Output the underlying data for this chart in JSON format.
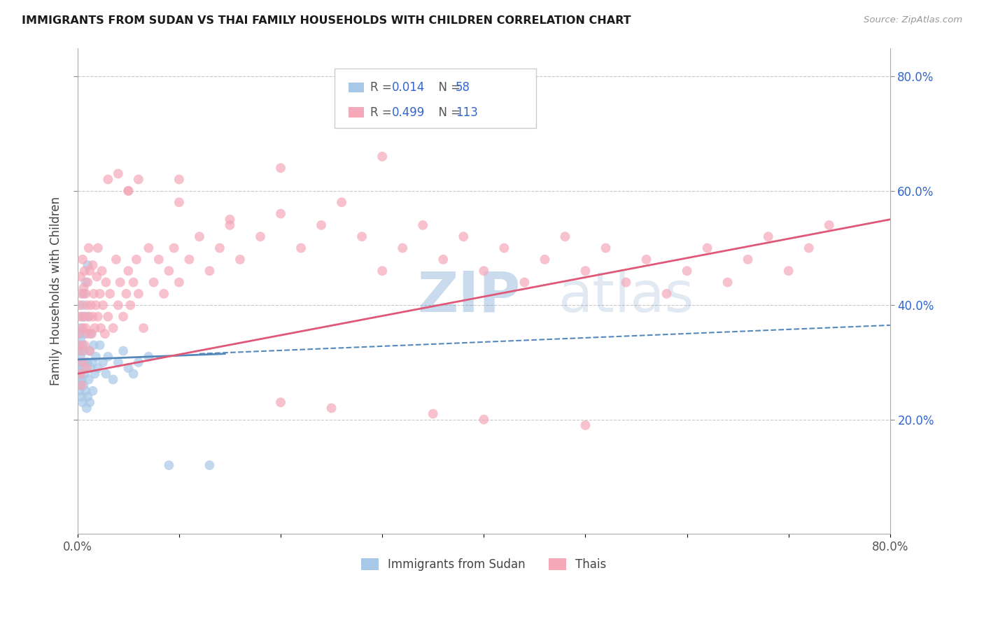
{
  "title": "IMMIGRANTS FROM SUDAN VS THAI FAMILY HOUSEHOLDS WITH CHILDREN CORRELATION CHART",
  "source": "Source: ZipAtlas.com",
  "ylabel": "Family Households with Children",
  "xlim": [
    0.0,
    0.8
  ],
  "ylim": [
    0.0,
    0.85
  ],
  "xtick_pos": [
    0.0,
    0.1,
    0.2,
    0.3,
    0.4,
    0.5,
    0.6,
    0.7,
    0.8
  ],
  "xticklabels": [
    "0.0%",
    "",
    "",
    "",
    "",
    "",
    "",
    "",
    "80.0%"
  ],
  "ytick_pos": [
    0.2,
    0.4,
    0.6,
    0.8
  ],
  "ytick_labels_right": [
    "20.0%",
    "40.0%",
    "60.0%",
    "80.0%"
  ],
  "color_blue": "#a8c8e8",
  "color_pink": "#f4a8b8",
  "color_blue_line": "#5588bb",
  "color_pink_line": "#e05878",
  "color_blue_text": "#3366cc",
  "color_pink_text": "#3366cc",
  "grid_color": "#bbbbbb",
  "watermark_zip_color": "#6699cc",
  "watermark_atlas_color": "#88aacc",
  "sudan_x": [
    0.001,
    0.001,
    0.001,
    0.002,
    0.002,
    0.002,
    0.002,
    0.002,
    0.003,
    0.003,
    0.003,
    0.003,
    0.004,
    0.004,
    0.004,
    0.004,
    0.005,
    0.005,
    0.005,
    0.005,
    0.006,
    0.006,
    0.006,
    0.007,
    0.007,
    0.007,
    0.008,
    0.008,
    0.009,
    0.009,
    0.01,
    0.01,
    0.01,
    0.011,
    0.011,
    0.012,
    0.012,
    0.013,
    0.013,
    0.015,
    0.015,
    0.016,
    0.017,
    0.018,
    0.02,
    0.022,
    0.025,
    0.028,
    0.03,
    0.035,
    0.04,
    0.045,
    0.05,
    0.055,
    0.06,
    0.07,
    0.09,
    0.13
  ],
  "sudan_y": [
    0.3,
    0.28,
    0.32,
    0.35,
    0.27,
    0.33,
    0.29,
    0.25,
    0.36,
    0.31,
    0.26,
    0.34,
    0.38,
    0.24,
    0.3,
    0.27,
    0.4,
    0.23,
    0.33,
    0.29,
    0.42,
    0.26,
    0.32,
    0.35,
    0.28,
    0.38,
    0.44,
    0.25,
    0.3,
    0.22,
    0.47,
    0.3,
    0.24,
    0.38,
    0.27,
    0.32,
    0.23,
    0.35,
    0.29,
    0.3,
    0.25,
    0.33,
    0.28,
    0.31,
    0.29,
    0.33,
    0.3,
    0.28,
    0.31,
    0.27,
    0.3,
    0.32,
    0.29,
    0.28,
    0.3,
    0.31,
    0.12,
    0.12
  ],
  "thai_x": [
    0.001,
    0.002,
    0.002,
    0.003,
    0.003,
    0.003,
    0.004,
    0.004,
    0.004,
    0.005,
    0.005,
    0.005,
    0.006,
    0.006,
    0.007,
    0.007,
    0.008,
    0.008,
    0.009,
    0.009,
    0.01,
    0.01,
    0.011,
    0.011,
    0.012,
    0.012,
    0.013,
    0.014,
    0.015,
    0.015,
    0.016,
    0.017,
    0.018,
    0.019,
    0.02,
    0.02,
    0.022,
    0.023,
    0.024,
    0.025,
    0.027,
    0.028,
    0.03,
    0.032,
    0.035,
    0.038,
    0.04,
    0.042,
    0.045,
    0.048,
    0.05,
    0.052,
    0.055,
    0.058,
    0.06,
    0.065,
    0.07,
    0.075,
    0.08,
    0.085,
    0.09,
    0.095,
    0.1,
    0.11,
    0.12,
    0.13,
    0.14,
    0.15,
    0.16,
    0.18,
    0.2,
    0.22,
    0.24,
    0.26,
    0.28,
    0.3,
    0.32,
    0.34,
    0.36,
    0.38,
    0.4,
    0.42,
    0.44,
    0.46,
    0.48,
    0.5,
    0.52,
    0.54,
    0.56,
    0.58,
    0.6,
    0.62,
    0.64,
    0.66,
    0.68,
    0.7,
    0.72,
    0.74,
    0.03,
    0.04,
    0.05,
    0.06,
    0.1,
    0.15,
    0.2,
    0.25,
    0.35,
    0.4,
    0.5,
    0.05,
    0.1,
    0.2,
    0.3
  ],
  "thai_y": [
    0.35,
    0.33,
    0.4,
    0.28,
    0.38,
    0.45,
    0.32,
    0.42,
    0.26,
    0.36,
    0.48,
    0.3,
    0.38,
    0.43,
    0.33,
    0.46,
    0.36,
    0.42,
    0.29,
    0.4,
    0.35,
    0.44,
    0.38,
    0.5,
    0.32,
    0.46,
    0.4,
    0.35,
    0.38,
    0.47,
    0.42,
    0.36,
    0.4,
    0.45,
    0.38,
    0.5,
    0.42,
    0.36,
    0.46,
    0.4,
    0.35,
    0.44,
    0.38,
    0.42,
    0.36,
    0.48,
    0.4,
    0.44,
    0.38,
    0.42,
    0.46,
    0.4,
    0.44,
    0.48,
    0.42,
    0.36,
    0.5,
    0.44,
    0.48,
    0.42,
    0.46,
    0.5,
    0.44,
    0.48,
    0.52,
    0.46,
    0.5,
    0.54,
    0.48,
    0.52,
    0.56,
    0.5,
    0.54,
    0.58,
    0.52,
    0.46,
    0.5,
    0.54,
    0.48,
    0.52,
    0.46,
    0.5,
    0.44,
    0.48,
    0.52,
    0.46,
    0.5,
    0.44,
    0.48,
    0.42,
    0.46,
    0.5,
    0.44,
    0.48,
    0.52,
    0.46,
    0.5,
    0.54,
    0.62,
    0.63,
    0.6,
    0.62,
    0.58,
    0.55,
    0.23,
    0.22,
    0.21,
    0.2,
    0.19,
    0.6,
    0.62,
    0.64,
    0.66
  ],
  "sudan_line_x": [
    0.0,
    0.145
  ],
  "sudan_line_y": [
    0.305,
    0.315
  ],
  "thai_line_x": [
    0.0,
    0.8
  ],
  "thai_line_y": [
    0.28,
    0.55
  ]
}
